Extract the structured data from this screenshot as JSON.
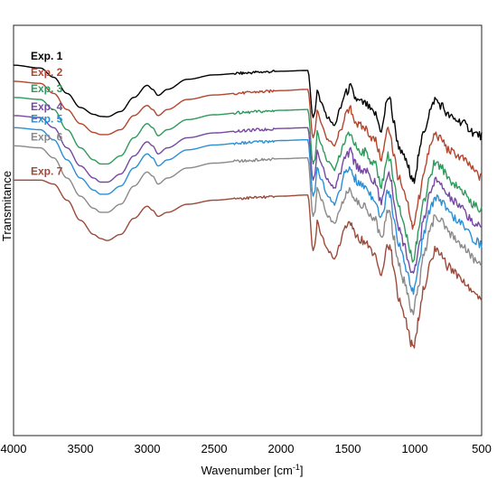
{
  "chart_data": {
    "type": "line",
    "title": "",
    "xlabel": "Wavenumber [cm",
    "xlabel_sup": "-1",
    "xlabel_end": "]",
    "ylabel": "Transmitance",
    "xlim": [
      4000,
      500
    ],
    "x_reversed": true,
    "x_ticks": [
      4000,
      3500,
      3000,
      2500,
      2000,
      1500,
      1000,
      500
    ],
    "y_ticks_shown": false,
    "grid": false,
    "legend": "inline-left",
    "ylim": [
      0,
      100
    ],
    "x_points": [
      4000,
      3800,
      3700,
      3600,
      3500,
      3400,
      3350,
      3300,
      3200,
      3100,
      3000,
      2960,
      2920,
      2850,
      2700,
      2500,
      2300,
      2150,
      2000,
      1800,
      1760,
      1745,
      1730,
      1700,
      1650,
      1600,
      1560,
      1520,
      1480,
      1450,
      1420,
      1380,
      1300,
      1250,
      1200,
      1180,
      1160,
      1120,
      1080,
      1050,
      1030,
      1010,
      990,
      970,
      930,
      880,
      850,
      800,
      750,
      700,
      650,
      600,
      550,
      500
    ],
    "series": [
      {
        "name": "Exp. 1",
        "color": "#000000",
        "values": [
          91,
          90.3,
          88,
          84,
          80.5,
          78.8,
          78.3,
          78.2,
          79.5,
          83,
          86,
          85,
          83.5,
          85,
          87.5,
          88.6,
          89,
          89.3,
          89.5,
          89.7,
          78,
          79.5,
          85,
          81.5,
          78,
          76,
          80,
          84,
          85.5,
          83,
          82,
          81.5,
          79,
          75,
          83,
          82,
          77,
          71,
          68,
          66,
          63,
          62,
          65,
          69,
          75,
          80,
          82.5,
          81,
          78.5,
          77.5,
          77,
          75.5,
          74,
          73.5
        ]
      },
      {
        "name": "Exp. 2",
        "color": "#b5452f",
        "values": [
          87,
          86.5,
          84,
          80,
          76.5,
          74.3,
          73.8,
          73.8,
          75,
          78.5,
          81,
          80,
          78.5,
          80,
          82.5,
          83.6,
          84.1,
          84.4,
          84.7,
          85,
          73,
          74.5,
          80,
          76.5,
          72.5,
          71,
          74.5,
          78.5,
          80,
          77.5,
          76,
          75.5,
          72.5,
          68,
          75,
          74,
          69,
          63,
          59,
          56,
          52,
          51,
          54,
          58,
          65,
          71,
          74,
          72.5,
          70,
          69,
          68,
          66.5,
          64.5,
          63
        ]
      },
      {
        "name": "Exp. 3",
        "color": "#2e9a5c",
        "values": [
          83,
          82.5,
          80,
          75,
          70.5,
          67.5,
          66.5,
          66.5,
          68.5,
          73,
          76.5,
          75.5,
          73.5,
          75,
          77.5,
          78.7,
          79.2,
          79.5,
          79.8,
          80,
          66.5,
          68,
          74.5,
          71,
          67,
          65,
          68.5,
          72.5,
          74,
          71.5,
          70,
          69.5,
          66.5,
          61.5,
          68.5,
          67.5,
          62,
          55.5,
          51,
          47.5,
          44,
          43,
          46.5,
          50.5,
          58,
          64,
          67,
          65.5,
          63,
          61.5,
          60,
          58,
          56,
          55
        ]
      },
      {
        "name": "Exp. 4",
        "color": "#7548a3",
        "values": [
          78.5,
          78,
          75.5,
          70.5,
          66,
          63,
          62,
          62,
          64,
          68.5,
          72,
          71,
          69,
          70.5,
          73,
          74.2,
          74.7,
          75,
          75.3,
          75.5,
          62.5,
          64,
          70,
          66.5,
          62.5,
          60.5,
          64,
          68,
          69.5,
          67,
          65.5,
          65,
          62,
          57,
          64,
          63,
          57.5,
          51,
          46.5,
          43,
          39.5,
          38.5,
          42,
          46,
          53.5,
          59.5,
          62.5,
          61,
          58.5,
          57,
          55.5,
          53.5,
          51.5,
          50.5
        ]
      },
      {
        "name": "Exp. 5",
        "color": "#2b8fd6",
        "values": [
          75.5,
          75,
          72.5,
          67.5,
          63,
          60,
          59,
          59,
          61,
          65.5,
          69,
          68,
          66,
          67.5,
          70,
          71.2,
          71.7,
          72,
          72.3,
          72.5,
          58.5,
          60,
          66,
          62.5,
          58.5,
          56.5,
          60,
          64,
          65.5,
          63,
          61.5,
          61,
          58,
          53,
          60,
          59,
          53.5,
          47,
          42.5,
          39,
          35.5,
          34.5,
          38,
          42,
          49.5,
          55.5,
          58.5,
          57,
          54.5,
          53,
          51.5,
          49.5,
          47.5,
          46.5
        ]
      },
      {
        "name": "Exp. 6",
        "color": "#8a8a8a",
        "values": [
          71,
          70.5,
          68,
          63,
          58.5,
          55.5,
          54.5,
          54.5,
          56.5,
          61,
          64.5,
          63.5,
          61.5,
          63,
          65.5,
          66.7,
          67.2,
          67.5,
          67.8,
          68,
          53.5,
          55,
          61,
          57.5,
          53.5,
          51.5,
          55,
          59,
          60.5,
          58,
          56.5,
          56,
          53,
          48,
          55,
          54,
          48.5,
          42,
          37.5,
          34,
          30.5,
          29.5,
          33,
          37,
          44.5,
          50.5,
          53.5,
          52,
          49.5,
          48,
          46.5,
          44.5,
          42.5,
          41.5
        ]
      },
      {
        "name": "Exp. 7",
        "color": "#9c4a3a",
        "values": [
          62.5,
          62.5,
          61.5,
          57.5,
          52.5,
          49,
          48,
          47.5,
          49,
          53,
          56,
          55,
          53.5,
          54.5,
          56.5,
          57.5,
          58,
          58.2,
          58.5,
          58.8,
          45,
          46.5,
          52.5,
          49,
          45,
          43,
          46.5,
          50.5,
          52,
          49.5,
          48,
          47.5,
          44.5,
          39.5,
          46.5,
          45.5,
          40,
          33.5,
          29,
          25.5,
          22,
          21,
          24.5,
          28.5,
          36,
          42,
          45,
          43.5,
          41,
          39.5,
          38,
          36,
          34,
          33
        ]
      }
    ]
  }
}
